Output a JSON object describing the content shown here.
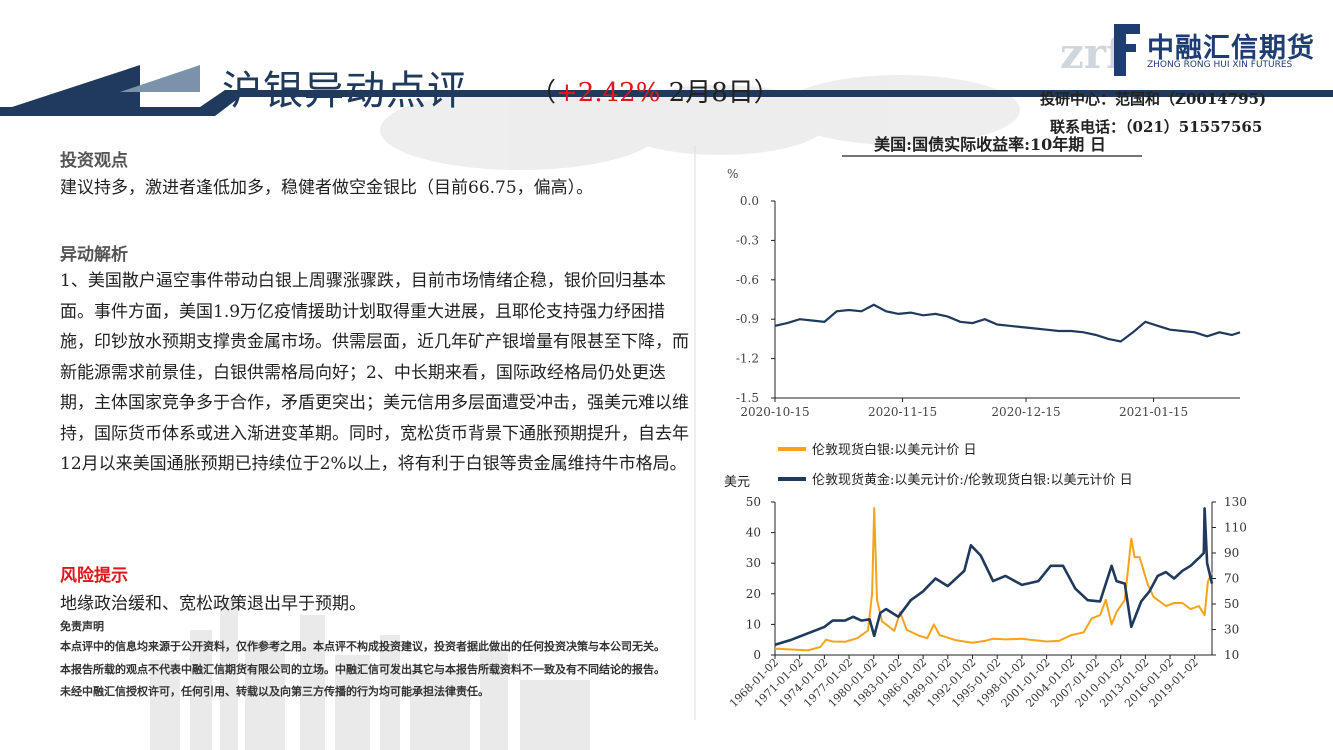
{
  "header": {
    "title": "沪银异动点评",
    "change_open": "（",
    "change": "+2.42%",
    "date": " 2月8日）"
  },
  "logo": {
    "name": "中融汇信期货",
    "sub": "ZHONG RONG HUI XIN FUTURES",
    "mark": "zrf"
  },
  "contact": {
    "center": "投研中心：范国和（Z0014795)",
    "phone": "联系电话：（021）51557565"
  },
  "sections": {
    "view_title": "投资观点",
    "view_text": "建议持多，激进者逢低加多，稳健者做空金银比（目前66.75，偏高）。",
    "analysis_title": "异动解析",
    "analysis_text": "1、美国散户逼空事件带动白银上周骤涨骤跌，目前市场情绪企稳，银价回归基本面。事件方面，美国1.9万亿疫情援助计划取得重大进展，且耶伦支持强力纾困措施，印钞放水预期支撑贵金属市场。供需层面，近几年矿产银增量有限甚至下降，而新能源需求前景佳，白银供需格局向好；2、中长期来看，国际政经格局仍处更迭期，主体国家竞争多于合作，矛盾更突出；美元信用多层面遭受冲击，强美元难以维持，国际货币体系或进入渐进变革期。同时，宽松货币背景下通胀预期提升，自去年12月以来美国通胀预期已持续位于2%以上，将有利于白银等贵金属维持牛市格局。",
    "risk_title": "风险提示",
    "risk_text": "地缘政治缓和、宽松政策退出早于预期。",
    "disclaimer_title": "免责声明",
    "disclaimer_text": "本点评中的信息均来源于公开资料，仅作参考之用。本点评不构成投资建议，投资者据此做出的任何投资决策与本公司无关。本报告所载的观点不代表中融汇信期货有限公司的立场。中融汇信可发出其它与本报告所载资料不一致及有不同结论的报告。未经中融汇信授权许可，任何引用、转载以及向第三方传播的行为均可能承担法律责任。"
  },
  "colors": {
    "navy": "#1f3a5c",
    "red": "#e0161b",
    "orange": "#f5a31a",
    "steel": "#8aa4b8"
  },
  "chart_data": [
    {
      "type": "line",
      "title": "美国:国债实际收益率:10年期 日",
      "ylabel": "%",
      "ylim": [
        -1.5,
        0.0
      ],
      "yticks": [
        "0.0",
        "-0.3",
        "-0.6",
        "-0.9",
        "-1.2",
        "-1.5"
      ],
      "xticks": [
        "2020-10-15",
        "2020-11-15",
        "2020-12-15",
        "2021-01-15"
      ],
      "x_range": [
        "2020-10-15",
        "2021-02-05"
      ],
      "series": [
        {
          "color": "#1f3a5c",
          "x": [
            "2020-10-15",
            "2020-10-18",
            "2020-10-21",
            "2020-10-24",
            "2020-10-27",
            "2020-10-30",
            "2020-11-02",
            "2020-11-05",
            "2020-11-08",
            "2020-11-11",
            "2020-11-14",
            "2020-11-17",
            "2020-11-20",
            "2020-11-23",
            "2020-11-26",
            "2020-11-29",
            "2020-12-02",
            "2020-12-05",
            "2020-12-08",
            "2020-12-11",
            "2020-12-14",
            "2020-12-17",
            "2020-12-20",
            "2020-12-23",
            "2020-12-26",
            "2020-12-29",
            "2021-01-01",
            "2021-01-04",
            "2021-01-07",
            "2021-01-10",
            "2021-01-13",
            "2021-01-16",
            "2021-01-19",
            "2021-01-22",
            "2021-01-25",
            "2021-01-28",
            "2021-01-31",
            "2021-02-03",
            "2021-02-05"
          ],
          "values": [
            -0.95,
            -0.93,
            -0.9,
            -0.91,
            -0.92,
            -0.84,
            -0.83,
            -0.84,
            -0.79,
            -0.84,
            -0.86,
            -0.85,
            -0.87,
            -0.86,
            -0.88,
            -0.92,
            -0.93,
            -0.9,
            -0.94,
            -0.95,
            -0.96,
            -0.97,
            -0.98,
            -0.99,
            -0.99,
            -1.0,
            -1.02,
            -1.05,
            -1.07,
            -1.0,
            -0.92,
            -0.95,
            -0.98,
            -0.99,
            -1.0,
            -1.03,
            -1.0,
            -1.02,
            -1.0
          ]
        }
      ]
    },
    {
      "type": "line",
      "ylabel_left": "美元",
      "ylim_left": [
        0,
        50
      ],
      "ylim_right": [
        10,
        130
      ],
      "yticks_left": [
        "50",
        "40",
        "30",
        "20",
        "10",
        "0"
      ],
      "yticks_right": [
        "130",
        "110",
        "90",
        "70",
        "50",
        "30",
        "10"
      ],
      "xticks": [
        "1968-01-02",
        "1971-01-02",
        "1974-01-02",
        "1977-01-02",
        "1980-01-02",
        "1983-01-02",
        "1986-01-02",
        "1989-01-02",
        "1992-01-02",
        "1995-01-02",
        "1998-01-02",
        "2001-01-02",
        "2004-01-02",
        "2007-01-02",
        "2010-01-02",
        "2013-01-02",
        "2016-01-02",
        "2019-01-02"
      ],
      "x_range": [
        1968,
        2021.1
      ],
      "series": [
        {
          "name": "伦敦现货白银:以美元计价 日",
          "axis": "left",
          "color": "#f5a31a",
          "x": [
            1968,
            1970,
            1972,
            1973.5,
            1974.2,
            1975,
            1976.5,
            1978,
            1979.3,
            1979.8,
            1980.05,
            1980.4,
            1981,
            1982.5,
            1983.2,
            1984,
            1985.5,
            1986.5,
            1987.3,
            1988,
            1990,
            1992,
            1993.5,
            1994.5,
            1996,
            1998,
            1999,
            2001,
            2002.5,
            2004,
            2005.5,
            2006.5,
            2007.5,
            2008.2,
            2008.9,
            2009.5,
            2010.5,
            2011.3,
            2011.7,
            2012.3,
            2013.3,
            2014,
            2015.5,
            2016.5,
            2017.5,
            2018.5,
            2019.5,
            2020.2,
            2020.6,
            2021.1
          ],
          "values": [
            2.1,
            1.8,
            1.5,
            2.6,
            5,
            4.4,
            4.3,
            5.5,
            8,
            20,
            48,
            18,
            11,
            7.9,
            14,
            8.2,
            6.3,
            5.5,
            10,
            6.5,
            4.8,
            4,
            4.6,
            5.3,
            5.1,
            5.3,
            5,
            4.4,
            4.6,
            6.5,
            7.4,
            12,
            13,
            18,
            10,
            14,
            18,
            38,
            32,
            32,
            23,
            19,
            16,
            17,
            17,
            15,
            16,
            13,
            24,
            27
          ]
        },
        {
          "name": "伦敦现货黄金:以美元计价:/伦敦现货白银:以美元计价 日",
          "axis": "right",
          "color": "#1f3a5c",
          "x": [
            1968,
            1970,
            1972,
            1974,
            1975,
            1976.5,
            1977.5,
            1978.5,
            1979.5,
            1980.05,
            1980.8,
            1981.5,
            1983,
            1984.5,
            1986,
            1987.5,
            1989,
            1991,
            1991.8,
            1993,
            1994.5,
            1996,
            1998,
            2000,
            2001.5,
            2003,
            2004.5,
            2006,
            2007.5,
            2008.9,
            2009.5,
            2010.5,
            2011.3,
            2012.5,
            2013.5,
            2014.5,
            2015.5,
            2016.5,
            2017.5,
            2018.5,
            2019.5,
            2020.1,
            2020.2,
            2020.5,
            2021.1
          ],
          "values": [
            18,
            22,
            27,
            32,
            37,
            37,
            40,
            37,
            38,
            25,
            43,
            46,
            40,
            53,
            60,
            70,
            64,
            76,
            96,
            88,
            68,
            72,
            65,
            68,
            80,
            80,
            62,
            53,
            52,
            80,
            68,
            66,
            32,
            52,
            60,
            72,
            75,
            70,
            76,
            80,
            86,
            90,
            125,
            82,
            66
          ]
        }
      ]
    }
  ]
}
